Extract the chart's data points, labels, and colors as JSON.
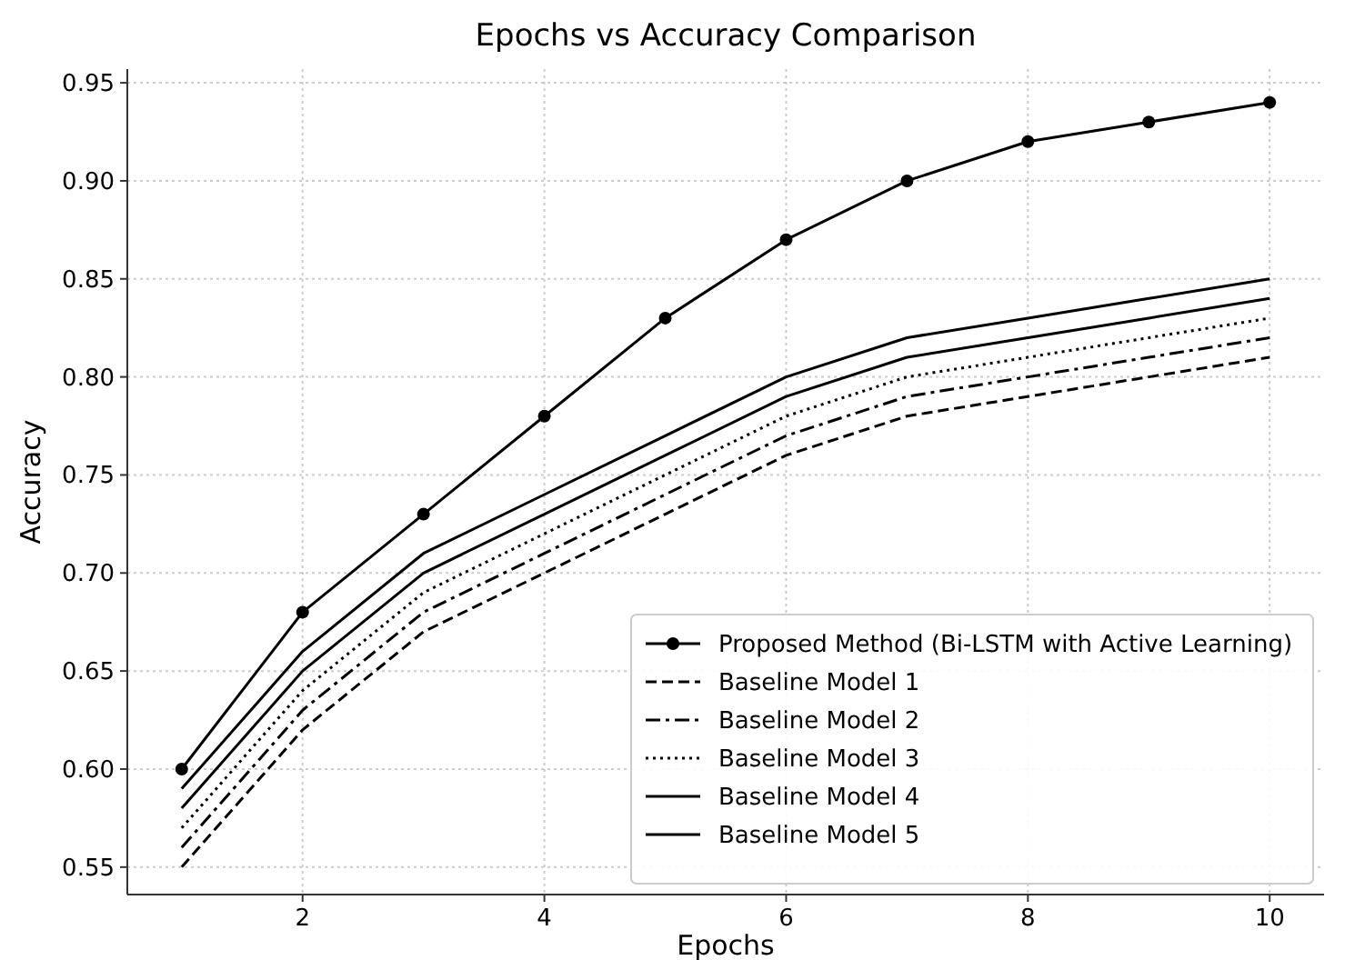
{
  "chart_data": {
    "type": "line",
    "title": "Epochs vs Accuracy Comparison",
    "xlabel": "Epochs",
    "ylabel": "Accuracy",
    "x": [
      1,
      2,
      3,
      4,
      5,
      6,
      7,
      8,
      9,
      10
    ],
    "xlim": [
      0.55,
      10.45
    ],
    "xticks": [
      2,
      4,
      6,
      8,
      10
    ],
    "ylim": [
      0.536,
      0.957
    ],
    "yticks": [
      0.55,
      {
        "value": 0.6,
        "label": "0.60"
      },
      0.65,
      {
        "value": 0.7,
        "label": "0.70"
      },
      0.75,
      {
        "value": 0.8,
        "label": "0.80"
      },
      0.85,
      {
        "value": 0.9,
        "label": "0.90"
      },
      0.95
    ],
    "grid": true,
    "legend": "bottom right",
    "series": [
      {
        "name": "Proposed Method (Bi-LSTM with Active Learning)",
        "color": "#000000",
        "marker": "circle",
        "line_style": "solid",
        "values": [
          0.6,
          0.68,
          0.73,
          0.78,
          0.83,
          0.87,
          0.9,
          0.92,
          0.93,
          0.94
        ]
      },
      {
        "name": "Baseline Model 1",
        "color": "#000000",
        "marker": "none",
        "line_style": "dashed",
        "values": [
          0.55,
          0.62,
          0.67,
          0.7,
          0.73,
          0.76,
          0.78,
          0.79,
          0.8,
          0.81
        ]
      },
      {
        "name": "Baseline Model 2",
        "color": "#000000",
        "marker": "none",
        "line_style": "dashdot",
        "values": [
          0.56,
          0.63,
          0.68,
          0.71,
          0.74,
          0.77,
          0.79,
          0.8,
          0.81,
          0.82
        ]
      },
      {
        "name": "Baseline Model 3",
        "color": "#000000",
        "marker": "none",
        "line_style": "dotted",
        "values": [
          0.57,
          0.64,
          0.69,
          0.72,
          0.75,
          0.78,
          0.8,
          0.81,
          0.82,
          0.83
        ]
      },
      {
        "name": "Baseline Model 4",
        "color": "#000000",
        "marker": "none",
        "line_style": "solid",
        "values": [
          0.58,
          0.65,
          0.7,
          0.73,
          0.76,
          0.79,
          0.81,
          0.82,
          0.83,
          0.84
        ]
      },
      {
        "name": "Baseline Model 5",
        "color": "#000000",
        "marker": "none",
        "line_style": "solid",
        "values": [
          0.59,
          0.66,
          0.71,
          0.74,
          0.77,
          0.8,
          0.82,
          0.83,
          0.84,
          0.85
        ]
      }
    ]
  }
}
